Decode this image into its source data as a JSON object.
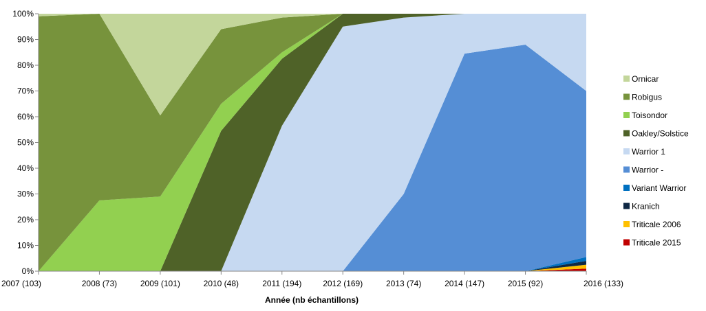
{
  "chart_data": {
    "type": "area",
    "stacked": "percent",
    "title": "",
    "xlabel": "Année (nb échantillons)",
    "ylabel": "",
    "ylim": [
      0,
      100
    ],
    "y_ticks": [
      "0%",
      "10%",
      "20%",
      "30%",
      "40%",
      "50%",
      "60%",
      "70%",
      "80%",
      "90%",
      "100%"
    ],
    "categories": [
      "2007 (103)",
      "2008 (73)",
      "2009 (101)",
      "2010 (48)",
      "2011 (194)",
      "2012 (169)",
      "2013 (74)",
      "2014 (147)",
      "2015 (92)",
      "2016 (133)"
    ],
    "legend_position": "right",
    "series": [
      {
        "name": "Triticale 2015",
        "color": "#c00000",
        "values": [
          0,
          0,
          0,
          0,
          0,
          0,
          0,
          0,
          0,
          1.0
        ]
      },
      {
        "name": "Triticale 2006",
        "color": "#ffc000",
        "values": [
          0,
          0,
          0,
          0,
          0,
          0,
          0,
          0,
          0,
          1.5
        ]
      },
      {
        "name": "Kranich",
        "color": "#0f2844",
        "values": [
          0,
          0,
          0,
          0,
          0,
          0,
          0,
          0,
          0,
          1.5
        ]
      },
      {
        "name": "Variant Warrior",
        "color": "#0070c0",
        "values": [
          0,
          0,
          0,
          0,
          0,
          0,
          0,
          0,
          0,
          1.5
        ]
      },
      {
        "name": "Warrior -",
        "color": "#558ed5",
        "values": [
          0,
          0,
          0,
          0,
          0,
          0,
          30,
          84.5,
          88,
          64.5
        ]
      },
      {
        "name": "Warrior 1",
        "color": "#c6d9f1",
        "values": [
          0,
          0,
          0,
          0,
          56.5,
          95,
          68.5,
          15.5,
          12,
          30
        ]
      },
      {
        "name": "Oakley/Solstice",
        "color": "#4f6228",
        "values": [
          0,
          0,
          0,
          54.5,
          26,
          5,
          1.5,
          0,
          0,
          0
        ]
      },
      {
        "name": "Toisondor",
        "color": "#92d050",
        "values": [
          0,
          27.5,
          29,
          10.5,
          2.5,
          0,
          0,
          0,
          0,
          0
        ]
      },
      {
        "name": "Robigus",
        "color": "#77933c",
        "values": [
          99,
          72.5,
          31.5,
          29,
          13.5,
          0,
          0,
          0,
          0,
          0
        ]
      },
      {
        "name": "Ornicar",
        "color": "#c3d69b",
        "values": [
          1,
          0,
          39.5,
          6,
          1.5,
          0,
          0,
          0,
          0,
          0
        ]
      }
    ],
    "legend_order": [
      "Ornicar",
      "Robigus",
      "Toisondor",
      "Oakley/Solstice",
      "Warrior 1",
      "Warrior -",
      "Variant Warrior",
      "Kranich",
      "Triticale 2006",
      "Triticale 2015"
    ]
  }
}
